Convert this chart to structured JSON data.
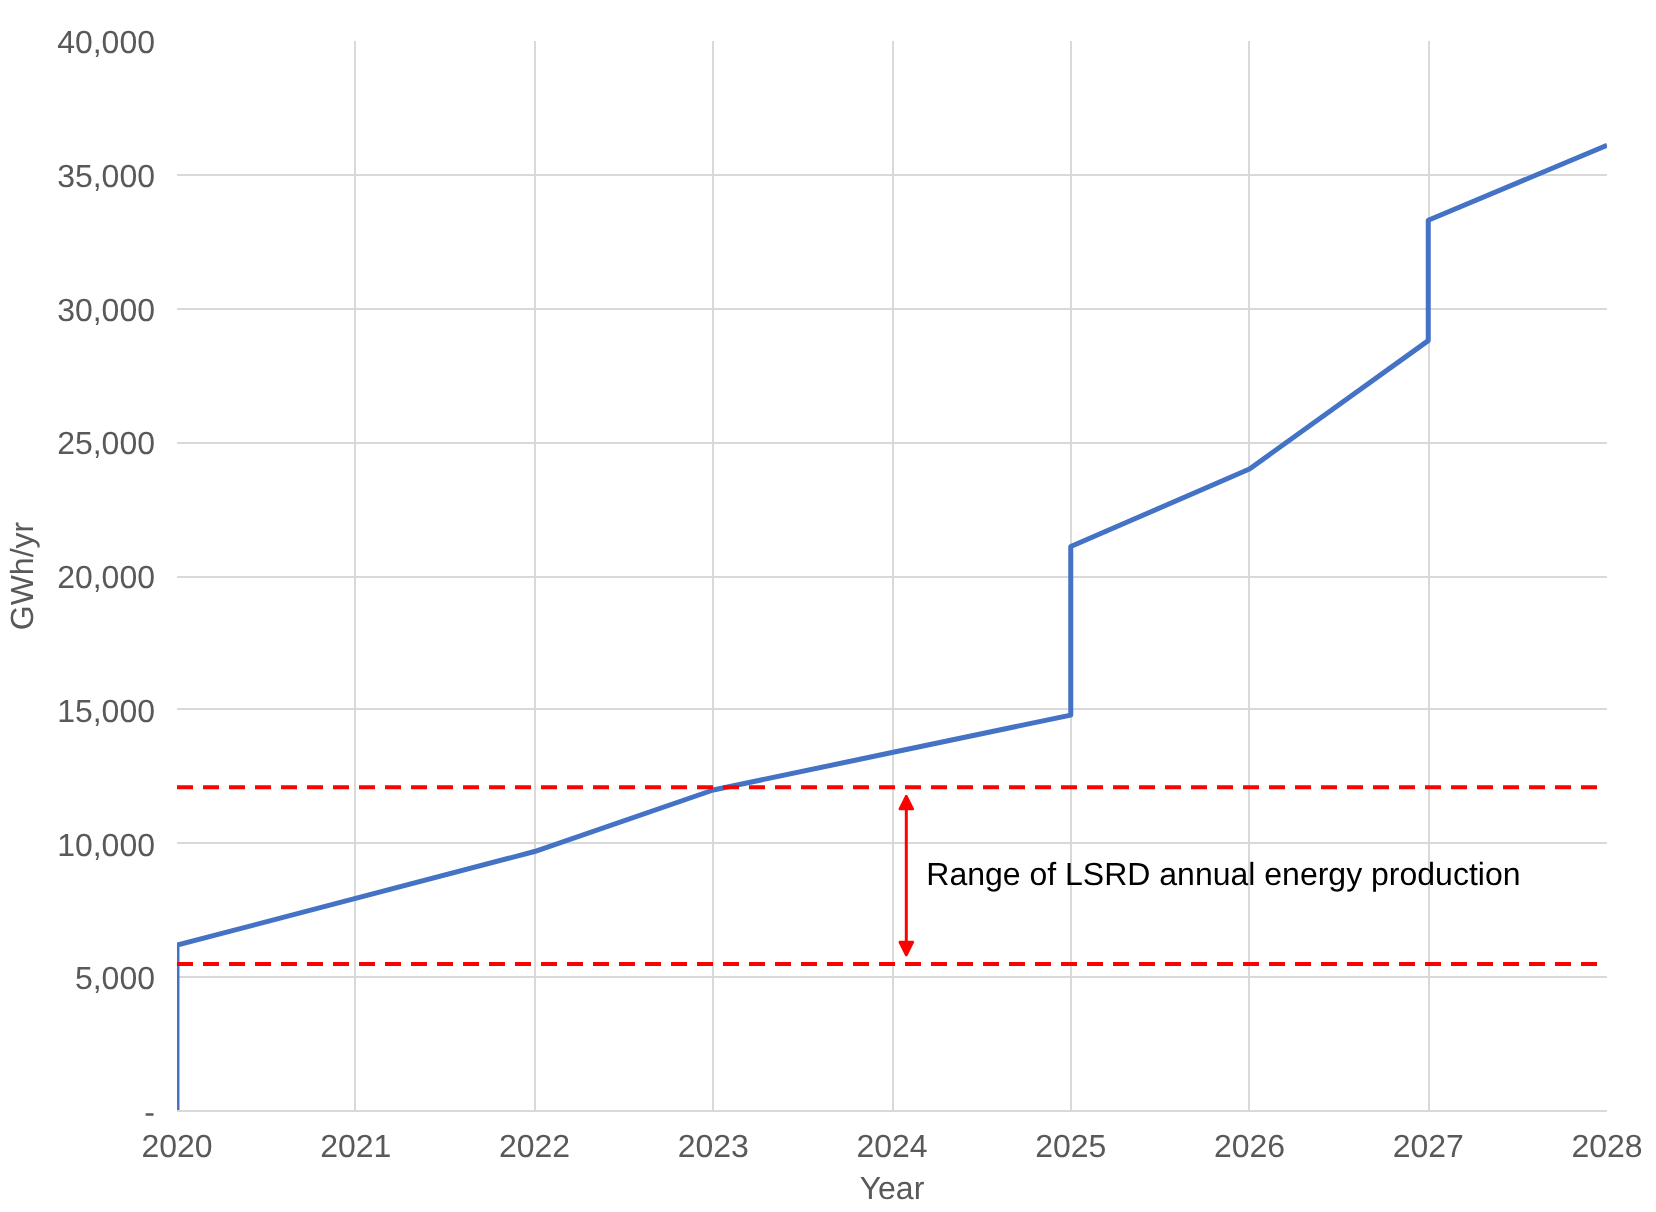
{
  "chart_data": {
    "type": "line",
    "xlabel": "Year",
    "ylabel": "GWh/yr",
    "series": [
      {
        "color": "#4472c4",
        "x": [
          2020,
          2020,
          2022,
          2023,
          2024,
          2025,
          2025,
          2026,
          2027,
          2027,
          2028
        ],
        "values": [
          0,
          6200,
          9700,
          12000,
          13400,
          14800,
          21100,
          24000,
          28800,
          33300,
          36100
        ]
      }
    ],
    "xlim": [
      2020,
      2028
    ],
    "ylim": [
      0,
      40000
    ],
    "xticks": [
      2020,
      2021,
      2022,
      2023,
      2024,
      2025,
      2026,
      2027,
      2028
    ],
    "yticks": [
      {
        "value": 0,
        "label": "-"
      },
      {
        "value": 5000,
        "label": "5,000"
      },
      {
        "value": 10000,
        "label": "10,000"
      },
      {
        "value": 15000,
        "label": "15,000"
      },
      {
        "value": 20000,
        "label": "20,000"
      },
      {
        "value": 25000,
        "label": "25,000"
      },
      {
        "value": 30000,
        "label": "30,000"
      },
      {
        "value": 35000,
        "label": "35,000"
      },
      {
        "value": 40000,
        "label": "40,000"
      }
    ],
    "ref_lines": [
      {
        "axis": "y",
        "value": 12100,
        "color": "#ff0000",
        "line_style": "dashed"
      },
      {
        "axis": "y",
        "value": 5500,
        "color": "#ff0000",
        "line_style": "dashed"
      }
    ],
    "annotations": [
      "Range of LSRD annual energy production"
    ],
    "grid": true,
    "marker": "none",
    "line_style": "solid"
  }
}
